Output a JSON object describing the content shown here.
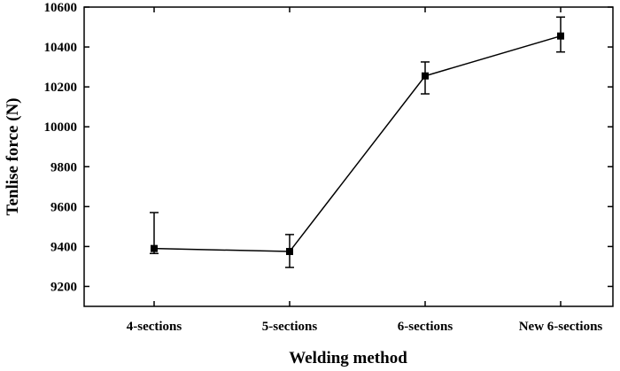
{
  "chart_data": {
    "type": "line",
    "title": "",
    "xlabel": "Welding method",
    "ylabel": "Tenlise force (N)",
    "categories": [
      "4-sections",
      "5-sections",
      "6-sections",
      "New 6-sections"
    ],
    "series": [
      {
        "values": [
          9390,
          9375,
          10255,
          10455
        ],
        "error_low": [
          9365,
          9295,
          10165,
          10375
        ],
        "error_high": [
          9570,
          9460,
          10325,
          10550
        ]
      }
    ],
    "ylim": [
      9100,
      10600
    ],
    "yticks": [
      9200,
      9400,
      9600,
      9800,
      10000,
      10200,
      10400,
      10600
    ],
    "grid": false,
    "legend": "none",
    "colors": {
      "line": "#000000",
      "marker": "#000000",
      "axis": "#000000"
    }
  }
}
